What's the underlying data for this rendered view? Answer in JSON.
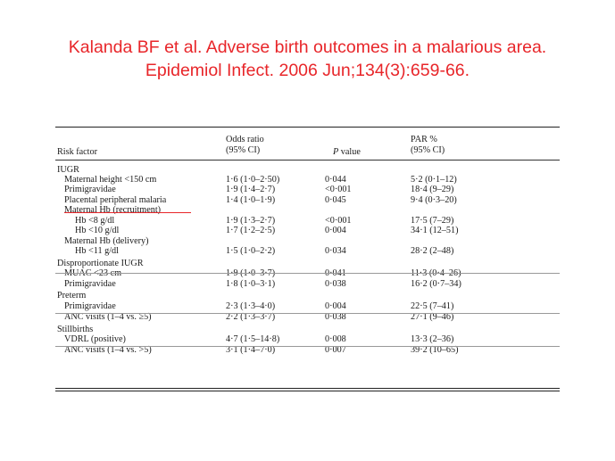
{
  "citation": {
    "line1": "Kalanda BF et al. Adverse birth outcomes in a malarious area.",
    "line2": "Epidemiol Infect. 2006 Jun;134(3):659-66."
  },
  "headers": {
    "factor": "Risk factor",
    "odds1": "Odds ratio",
    "odds2": "(95% CI)",
    "p": "P value",
    "par1": "PAR %",
    "par2": "(95% CI)"
  },
  "rows": [
    {
      "factor": "IUGR",
      "odds": "",
      "p": "",
      "par": "",
      "indent": 0
    },
    {
      "factor": "Maternal height <150 cm",
      "odds": "1·6 (1·0–2·50)",
      "p": "0·044",
      "par": "5·2 (0·1–12)",
      "indent": 1
    },
    {
      "factor": "Primigravidae",
      "odds": "1·9 (1·4–2·7)",
      "p": "<0·001",
      "par": "18·4 (9–29)",
      "indent": 1
    },
    {
      "factor": "Placental peripheral malaria",
      "odds": "1·4 (1·0–1·9)",
      "p": "0·045",
      "par": "9·4 (0·3–20)",
      "indent": 1
    },
    {
      "factor": "Maternal Hb (recruitment)",
      "odds": "",
      "p": "",
      "par": "",
      "indent": 1
    },
    {
      "factor": "Hb <8 g/dl",
      "odds": "1·9 (1·3–2·7)",
      "p": "<0·001",
      "par": "17·5 (7–29)",
      "indent": 2
    },
    {
      "factor": "Hb <10 g/dl",
      "odds": "1·7 (1·2–2·5)",
      "p": "0·004",
      "par": "34·1 (12–51)",
      "indent": 2
    },
    {
      "factor": "Maternal Hb (delivery)",
      "odds": "",
      "p": "",
      "par": "",
      "indent": 1
    },
    {
      "factor": "Hb <11 g/dl",
      "odds": "1·5 (1·0–2·2)",
      "p": "0·034",
      "par": "28·2 (2–48)",
      "indent": 2
    },
    {
      "factor": "Disproportionate IUGR",
      "odds": "",
      "p": "",
      "par": "",
      "indent": 0
    },
    {
      "factor": "MUAC <23 cm",
      "odds": "1·9 (1·0–3·7)",
      "p": "0·041",
      "par": "11·3 (0·4–26)",
      "indent": 1
    },
    {
      "factor": "Primigravidae",
      "odds": "1·8 (1·0–3·1)",
      "p": "0·038",
      "par": "16·2 (0·7–34)",
      "indent": 1
    },
    {
      "factor": "Preterm",
      "odds": "",
      "p": "",
      "par": "",
      "indent": 0
    },
    {
      "factor": "Primigravidae",
      "odds": "2·3 (1·3–4·0)",
      "p": "0·004",
      "par": "22·5 (7–41)",
      "indent": 1
    },
    {
      "factor": "ANC visits (1–4 vs. ≥5)",
      "odds": "2·2 (1·3–3·7)",
      "p": "0·038",
      "par": "27·1 (9–46)",
      "indent": 1
    },
    {
      "factor": "Stillbirths",
      "odds": "",
      "p": "",
      "par": "",
      "indent": 0
    },
    {
      "factor": "VDRL (positive)",
      "odds": "4·7 (1·5–14·8)",
      "p": "0·008",
      "par": "13·3 (2–36)",
      "indent": 1
    },
    {
      "factor": "ANC visits (1–4 vs. >5)",
      "odds": "3·1 (1·4–7·0)",
      "p": "0·007",
      "par": "39·2 (10–65)",
      "indent": 1
    }
  ],
  "colors": {
    "citation_text": "#e8262a",
    "highlight_underline": "#e8262a",
    "table_text": "#1a1a1a"
  }
}
